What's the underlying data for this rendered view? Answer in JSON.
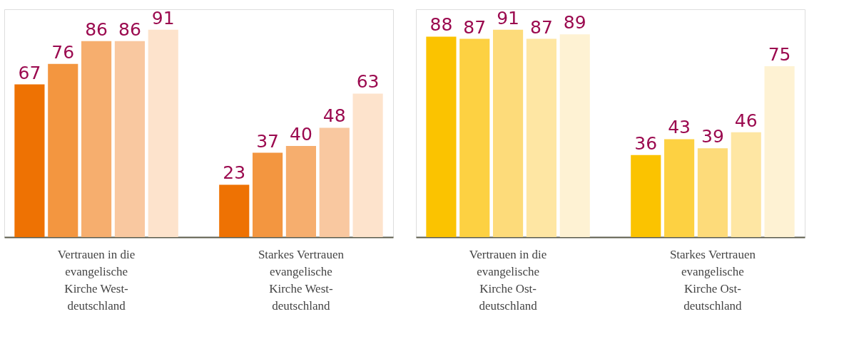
{
  "chart_data": [
    {
      "type": "bar",
      "categories": [
        "Vertrauen in die\nevangelische\nKirche West-\ndeutschland",
        "Starkes Vertrauen\nevangelische\nKirche West-\ndeutschland"
      ],
      "series": [
        {
          "color": "#ee7203",
          "values": [
            67,
            23
          ]
        },
        {
          "color": "#f39640",
          "values": [
            76,
            37
          ]
        },
        {
          "color": "#f6ae6e",
          "values": [
            86,
            40
          ]
        },
        {
          "color": "#f9c8a0",
          "values": [
            86,
            48
          ]
        },
        {
          "color": "#fde3cc",
          "values": [
            91,
            63
          ]
        }
      ],
      "ylim": [
        0,
        100
      ],
      "data_labels": true,
      "tick_labels": "x",
      "grid": false,
      "legend": false
    },
    {
      "type": "bar",
      "categories": [
        "Vertrauen in die\nevangelische\nKirche Ost-\ndeutschland",
        "Starkes Vertrauen\nevangelische\nKirche Ost-\ndeutschland"
      ],
      "series": [
        {
          "color": "#fbc300",
          "values": [
            88,
            36
          ]
        },
        {
          "color": "#fdd142",
          "values": [
            87,
            43
          ]
        },
        {
          "color": "#fddb7a",
          "values": [
            91,
            39
          ]
        },
        {
          "color": "#fee6a3",
          "values": [
            87,
            46
          ]
        },
        {
          "color": "#fef2d3",
          "values": [
            89,
            75
          ]
        }
      ],
      "ylim": [
        0,
        100
      ],
      "data_labels": true,
      "tick_labels": "x",
      "grid": false,
      "legend": false
    }
  ]
}
